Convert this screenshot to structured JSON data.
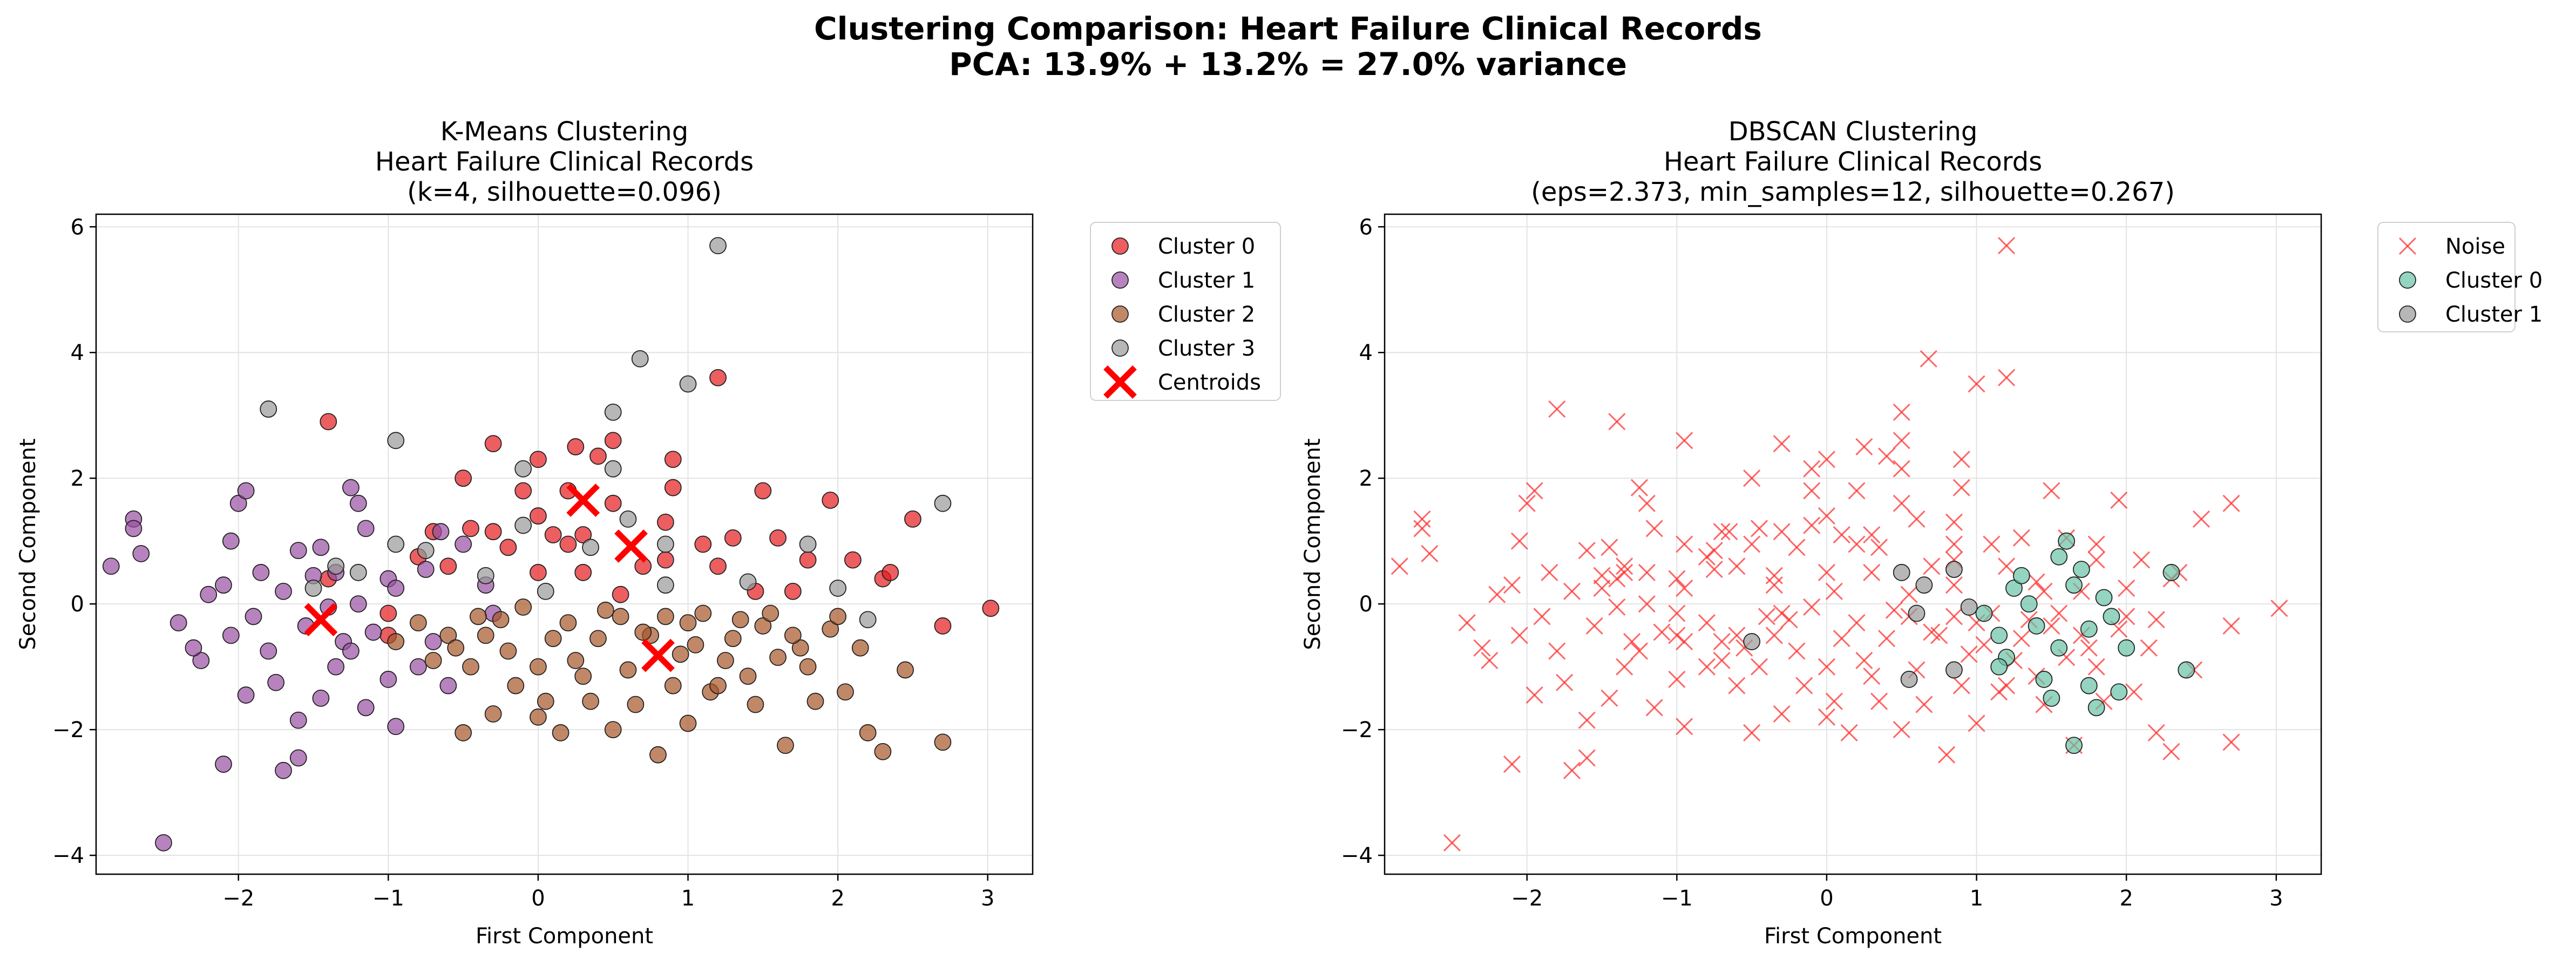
{
  "figure": {
    "title_line1": "Clustering Comparison: Heart Failure Clinical Records",
    "title_line2": "PCA: 13.9% + 13.2% = 27.0% variance"
  },
  "chart_data": [
    {
      "type": "scatter",
      "title_lines": [
        "K-Means Clustering",
        "Heart Failure Clinical Records",
        "(k=4, silhouette=0.096)"
      ],
      "xlabel": "First Component",
      "ylabel": "Second Component",
      "xlim": [
        -2.95,
        3.3
      ],
      "ylim": [
        -4.3,
        6.2
      ],
      "xticks": [
        -2,
        -1,
        0,
        1,
        2,
        3
      ],
      "yticks": [
        -4,
        -2,
        0,
        2,
        4,
        6
      ],
      "grid": true,
      "legend_position": "outside-right-top",
      "series": [
        {
          "name": "Cluster 0",
          "marker": "circle",
          "color": "#e41a1c",
          "points": [
            [
              -1.4,
              2.9
            ],
            [
              -0.3,
              2.55
            ],
            [
              0,
              2.3
            ],
            [
              0.25,
              2.5
            ],
            [
              0.4,
              2.35
            ],
            [
              0.5,
              2.6
            ],
            [
              0.9,
              2.3
            ],
            [
              1.2,
              3.6
            ],
            [
              -0.5,
              2.0
            ],
            [
              -0.1,
              1.8
            ],
            [
              0.2,
              1.8
            ],
            [
              0.5,
              1.6
            ],
            [
              0.9,
              1.85
            ],
            [
              1.5,
              1.8
            ],
            [
              1.95,
              1.65
            ],
            [
              2.5,
              1.35
            ],
            [
              -0.7,
              1.15
            ],
            [
              -0.45,
              1.2
            ],
            [
              -0.3,
              1.15
            ],
            [
              0,
              1.4
            ],
            [
              0.1,
              1.1
            ],
            [
              0.3,
              1.1
            ],
            [
              0.7,
              0.6
            ],
            [
              0.85,
              1.3
            ],
            [
              1.1,
              0.95
            ],
            [
              1.3,
              1.05
            ],
            [
              1.6,
              1.05
            ],
            [
              1.8,
              0.7
            ],
            [
              2.1,
              0.7
            ],
            [
              -1.4,
              0.4
            ],
            [
              -1.0,
              -0.5
            ],
            [
              -0.8,
              0.75
            ],
            [
              -0.6,
              0.6
            ],
            [
              -0.2,
              0.9
            ],
            [
              0.3,
              0.5
            ],
            [
              0.55,
              0.15
            ],
            [
              0.85,
              0.7
            ],
            [
              1.2,
              0.6
            ],
            [
              1.45,
              0.2
            ],
            [
              1.7,
              0.2
            ],
            [
              2.3,
              0.4
            ],
            [
              2.35,
              0.5
            ],
            [
              2.7,
              -0.35
            ],
            [
              3.02,
              -0.07
            ],
            [
              -1.0,
              -0.15
            ],
            [
              0,
              0.5
            ],
            [
              0.2,
              0.95
            ]
          ]
        },
        {
          "name": "Cluster 1",
          "marker": "circle",
          "color": "#984ea3",
          "points": [
            [
              -2.5,
              -3.8
            ],
            [
              -2.7,
              1.35
            ],
            [
              -2.7,
              1.2
            ],
            [
              -2.85,
              0.6
            ],
            [
              -2.65,
              0.8
            ],
            [
              -2.4,
              -0.3
            ],
            [
              -2.2,
              0.15
            ],
            [
              -2.1,
              0.3
            ],
            [
              -2.05,
              1.0
            ],
            [
              -2.0,
              1.6
            ],
            [
              -1.95,
              1.8
            ],
            [
              -1.85,
              0.5
            ],
            [
              -1.7,
              0.2
            ],
            [
              -1.6,
              0.85
            ],
            [
              -1.45,
              0.9
            ],
            [
              -1.35,
              0.5
            ],
            [
              -1.25,
              1.85
            ],
            [
              -1.2,
              1.6
            ],
            [
              -1.15,
              1.2
            ],
            [
              -1.0,
              0.4
            ],
            [
              -0.95,
              0.25
            ],
            [
              -0.75,
              0.55
            ],
            [
              -0.65,
              1.15
            ],
            [
              -0.5,
              0.95
            ],
            [
              -0.35,
              0.3
            ],
            [
              -0.3,
              -0.15
            ],
            [
              -2.1,
              -2.55
            ],
            [
              -1.7,
              -2.65
            ],
            [
              -1.6,
              -2.45
            ],
            [
              -1.95,
              -1.45
            ],
            [
              -1.75,
              -1.25
            ],
            [
              -1.6,
              -1.85
            ],
            [
              -1.45,
              -1.5
            ],
            [
              -1.35,
              -1.0
            ],
            [
              -1.3,
              -0.6
            ],
            [
              -1.15,
              -1.65
            ],
            [
              -1.0,
              -1.2
            ],
            [
              -0.95,
              -1.95
            ],
            [
              -0.8,
              -1.0
            ],
            [
              -0.7,
              -0.6
            ],
            [
              -2.25,
              -0.9
            ],
            [
              -2.05,
              -0.5
            ],
            [
              -1.9,
              -0.2
            ],
            [
              -1.8,
              -0.75
            ],
            [
              -1.55,
              -0.35
            ],
            [
              -1.4,
              -0.05
            ],
            [
              -1.25,
              -0.75
            ],
            [
              -1.1,
              -0.45
            ],
            [
              -0.6,
              -1.3
            ],
            [
              -2.3,
              -0.7
            ],
            [
              -1.5,
              0.45
            ],
            [
              -1.2,
              0.0
            ]
          ]
        },
        {
          "name": "Cluster 2",
          "marker": "circle",
          "color": "#a65628",
          "points": [
            [
              -0.5,
              -2.05
            ],
            [
              -0.3,
              -1.75
            ],
            [
              -0.15,
              -1.3
            ],
            [
              0,
              -1.8
            ],
            [
              0.15,
              -2.05
            ],
            [
              0.35,
              -1.55
            ],
            [
              0.5,
              -2.0
            ],
            [
              0.8,
              -2.4
            ],
            [
              1.0,
              -1.9
            ],
            [
              1.15,
              -1.4
            ],
            [
              1.4,
              -1.15
            ],
            [
              1.65,
              -2.25
            ],
            [
              1.85,
              -1.55
            ],
            [
              2.05,
              -1.4
            ],
            [
              2.2,
              -2.05
            ],
            [
              2.45,
              -1.05
            ],
            [
              2.7,
              -2.2
            ],
            [
              2.3,
              -2.35
            ],
            [
              -0.6,
              -0.5
            ],
            [
              -0.4,
              -0.2
            ],
            [
              -0.2,
              -0.75
            ],
            [
              0,
              -1.0
            ],
            [
              0.2,
              -0.3
            ],
            [
              0.4,
              -0.55
            ],
            [
              0.55,
              -0.2
            ],
            [
              0.75,
              -0.5
            ],
            [
              0.95,
              -0.8
            ],
            [
              1.1,
              -0.15
            ],
            [
              1.3,
              -0.55
            ],
            [
              1.5,
              -0.35
            ],
            [
              1.75,
              -0.7
            ],
            [
              1.95,
              -0.4
            ],
            [
              2.15,
              -0.7
            ],
            [
              -0.8,
              -0.3
            ],
            [
              -0.7,
              -0.9
            ],
            [
              -0.45,
              -1.0
            ],
            [
              -0.25,
              -0.25
            ],
            [
              0.1,
              -0.55
            ],
            [
              0.3,
              -1.15
            ],
            [
              0.6,
              -1.05
            ],
            [
              0.85,
              -0.2
            ],
            [
              1.05,
              -0.65
            ],
            [
              1.25,
              -0.9
            ],
            [
              1.45,
              -1.6
            ],
            [
              1.6,
              -0.85
            ],
            [
              1.8,
              -1.0
            ],
            [
              2.0,
              -0.2
            ],
            [
              -0.95,
              -0.6
            ],
            [
              -0.55,
              -0.7
            ],
            [
              0.25,
              -0.9
            ],
            [
              0.7,
              -0.45
            ],
            [
              1.2,
              -1.3
            ],
            [
              1.35,
              -0.25
            ],
            [
              0.45,
              -0.1
            ],
            [
              -0.1,
              -0.05
            ],
            [
              0.9,
              -1.3
            ],
            [
              1.55,
              -0.15
            ],
            [
              0.05,
              -1.55
            ],
            [
              0.65,
              -1.6
            ],
            [
              -0.35,
              -0.5
            ],
            [
              1.0,
              -0.3
            ],
            [
              1.7,
              -0.5
            ]
          ]
        },
        {
          "name": "Cluster 3",
          "marker": "circle",
          "color": "#999999",
          "points": [
            [
              1.2,
              5.7
            ],
            [
              0.68,
              3.9
            ],
            [
              1.0,
              3.5
            ],
            [
              0.5,
              3.05
            ],
            [
              -1.8,
              3.1
            ],
            [
              -0.95,
              2.6
            ],
            [
              -0.1,
              2.15
            ],
            [
              0.5,
              2.15
            ],
            [
              2.7,
              1.6
            ],
            [
              1.8,
              0.95
            ],
            [
              0.85,
              0.95
            ],
            [
              -0.95,
              0.95
            ],
            [
              -0.35,
              0.45
            ],
            [
              0.6,
              1.35
            ],
            [
              0.85,
              0.3
            ],
            [
              -1.5,
              0.25
            ],
            [
              -1.2,
              0.5
            ],
            [
              -1.35,
              0.6
            ],
            [
              0.05,
              0.2
            ],
            [
              1.4,
              0.35
            ],
            [
              2.0,
              0.25
            ],
            [
              2.2,
              -0.25
            ],
            [
              -0.75,
              0.85
            ],
            [
              0.35,
              0.9
            ],
            [
              -0.1,
              1.25
            ]
          ]
        }
      ],
      "centroids": {
        "name": "Centroids",
        "marker": "x",
        "color": "#ff0000",
        "points": [
          [
            -1.45,
            -0.25
          ],
          [
            0.3,
            1.65
          ],
          [
            0.62,
            0.92
          ],
          [
            0.8,
            -0.82
          ]
        ]
      }
    },
    {
      "type": "scatter",
      "title_lines": [
        "DBSCAN Clustering",
        "Heart Failure Clinical Records",
        "(eps=2.373, min_samples=12, silhouette=0.267)"
      ],
      "xlabel": "First Component",
      "ylabel": "Second Component",
      "xlim": [
        -2.95,
        3.3
      ],
      "ylim": [
        -4.3,
        6.2
      ],
      "xticks": [
        -2,
        -1,
        0,
        1,
        2,
        3
      ],
      "yticks": [
        -4,
        -2,
        0,
        2,
        4,
        6
      ],
      "grid": true,
      "legend_position": "outside-right-top",
      "noise": {
        "name": "Noise",
        "marker": "x",
        "color": "#ff3333"
      },
      "series": [
        {
          "name": "Cluster 0",
          "marker": "circle",
          "color": "#66c2a5",
          "points": [
            [
              1.05,
              -0.15
            ],
            [
              1.15,
              -0.5
            ],
            [
              1.2,
              -0.85
            ],
            [
              1.25,
              0.25
            ],
            [
              1.3,
              0.45
            ],
            [
              1.4,
              -0.35
            ],
            [
              1.45,
              -1.2
            ],
            [
              1.5,
              -1.5
            ],
            [
              1.55,
              -0.7
            ],
            [
              1.6,
              1.0
            ],
            [
              1.65,
              0.3
            ],
            [
              1.7,
              0.55
            ],
            [
              1.75,
              -0.4
            ],
            [
              1.8,
              -1.65
            ],
            [
              1.85,
              0.1
            ],
            [
              1.9,
              -0.2
            ],
            [
              2.0,
              -0.7
            ],
            [
              2.3,
              0.5
            ],
            [
              2.4,
              -1.05
            ],
            [
              1.75,
              -1.3
            ],
            [
              1.65,
              -2.25
            ],
            [
              1.95,
              -1.4
            ],
            [
              1.35,
              0.0
            ],
            [
              1.15,
              -1.0
            ],
            [
              1.55,
              0.75
            ]
          ]
        },
        {
          "name": "Cluster 1",
          "marker": "circle",
          "color": "#999999",
          "points": [
            [
              0.5,
              0.5
            ],
            [
              0.65,
              0.3
            ],
            [
              0.6,
              -0.15
            ],
            [
              0.85,
              0.55
            ],
            [
              0.95,
              -0.05
            ],
            [
              0.55,
              -1.2
            ],
            [
              0.85,
              -1.05
            ],
            [
              -0.5,
              -0.6
            ]
          ]
        }
      ]
    }
  ]
}
